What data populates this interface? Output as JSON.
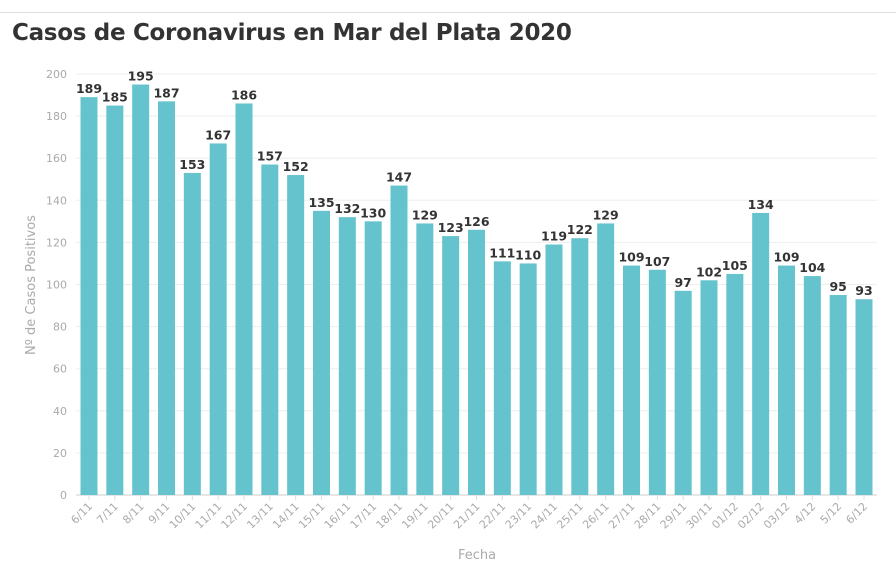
{
  "chart_data": {
    "type": "bar",
    "title": "Casos de Coronavirus en Mar del Plata 2020",
    "xlabel": "Fecha",
    "ylabel": "Nº de Casos Positivos",
    "ylim": [
      0,
      200
    ],
    "yticks": [
      0,
      20,
      40,
      60,
      80,
      100,
      120,
      140,
      160,
      180,
      200
    ],
    "grid": true,
    "bar_color": "#64c3cc",
    "categories": [
      "6/11",
      "7/11",
      "8/11",
      "9/11",
      "10/11",
      "11/11",
      "12/11",
      "13/11",
      "14/11",
      "15/11",
      "16/11",
      "17/11",
      "18/11",
      "19/11",
      "20/11",
      "21/11",
      "22/11",
      "23/11",
      "24/11",
      "25/11",
      "26/11",
      "27/11",
      "28/11",
      "29/11",
      "30/11",
      "01/12",
      "02/12",
      "03/12",
      "4/12",
      "5/12",
      "6/12"
    ],
    "values": [
      189,
      185,
      195,
      187,
      153,
      167,
      186,
      157,
      152,
      135,
      132,
      130,
      147,
      129,
      123,
      126,
      111,
      110,
      119,
      122,
      129,
      109,
      107,
      97,
      102,
      105,
      134,
      109,
      104,
      95,
      93
    ]
  }
}
